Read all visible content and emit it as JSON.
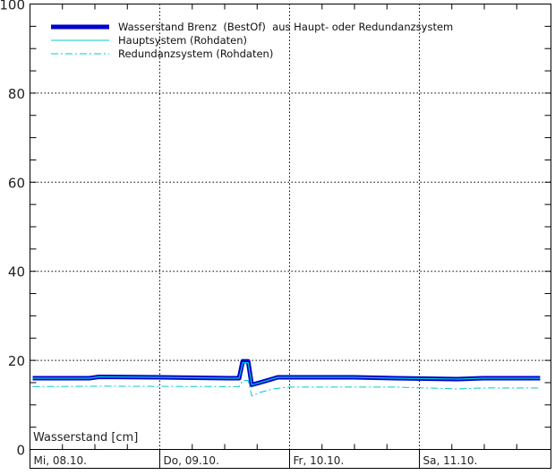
{
  "chart_data": {
    "type": "line",
    "title": "",
    "xlabel": "",
    "ylabel": "Wasserstand [cm]",
    "ylim": [
      0,
      100
    ],
    "yticks": [
      0,
      20,
      40,
      60,
      80,
      100
    ],
    "grid": true,
    "legend_position": "top-left",
    "x_day_labels": [
      "Mi, 08.10.",
      "Do, 09.10.",
      "Fr, 10.10.",
      "Sa, 11.10."
    ],
    "series": [
      {
        "name": "Wasserstand Brenz  (BestOf)  aus Haupt- oder Redundanzsystem",
        "color": "#0000cc",
        "style": "thick",
        "points": [
          [
            "08.10. 00:30",
            16.0
          ],
          [
            "08.10. 11:00",
            16.0
          ],
          [
            "08.10. 12:45",
            16.3
          ],
          [
            "09.10. 00:00",
            16.2
          ],
          [
            "09.10. 12:45",
            16.0
          ],
          [
            "09.10. 14:40",
            16.0
          ],
          [
            "09.10. 15:20",
            19.8
          ],
          [
            "09.10. 16:20",
            19.8
          ],
          [
            "09.10. 17:00",
            14.5
          ],
          [
            "09.10. 18:30",
            15.0
          ],
          [
            "09.10. 20:10",
            15.6
          ],
          [
            "09.10. 21:50",
            16.2
          ],
          [
            "10.10. 12:00",
            16.2
          ],
          [
            "10.10. 19:30",
            16.0
          ],
          [
            "11.10. 07:10",
            15.8
          ],
          [
            "11.10. 11:45",
            16.0
          ],
          [
            "11.10. 22:20",
            16.0
          ]
        ]
      },
      {
        "name": "Hauptsystem (Rohdaten)",
        "color": "#00cccc",
        "style": "solid",
        "points": [
          [
            "08.10. 00:30",
            16.0
          ],
          [
            "08.10. 11:00",
            16.0
          ],
          [
            "08.10. 12:45",
            16.3
          ],
          [
            "09.10. 00:00",
            16.2
          ],
          [
            "09.10. 12:45",
            16.0
          ],
          [
            "09.10. 14:40",
            16.0
          ],
          [
            "09.10. 15:20",
            19.5
          ],
          [
            "09.10. 16:20",
            19.5
          ],
          [
            "09.10. 17:00",
            14.5
          ],
          [
            "09.10. 18:30",
            15.0
          ],
          [
            "09.10. 20:10",
            15.6
          ],
          [
            "09.10. 21:50",
            16.2
          ],
          [
            "10.10. 12:00",
            16.2
          ],
          [
            "10.10. 19:30",
            16.0
          ],
          [
            "11.10. 07:10",
            15.8
          ],
          [
            "11.10. 11:45",
            16.0
          ],
          [
            "11.10. 22:20",
            16.0
          ]
        ]
      },
      {
        "name": "Redundanzsystem (Rohdaten)",
        "color": "#00cccc",
        "style": "dashdot",
        "points": [
          [
            "08.10. 00:30",
            14.1
          ],
          [
            "08.10. 14:00",
            14.2
          ],
          [
            "09.10. 14:40",
            14.1
          ],
          [
            "09.10. 15:20",
            15.5
          ],
          [
            "09.10. 16:20",
            15.5
          ],
          [
            "09.10. 17:00",
            12.0
          ],
          [
            "09.10. 18:30",
            12.8
          ],
          [
            "09.10. 21:00",
            13.6
          ],
          [
            "10.10. 00:00",
            14.0
          ],
          [
            "10.10. 19:30",
            14.0
          ],
          [
            "11.10. 07:00",
            13.6
          ],
          [
            "11.10. 12:00",
            13.8
          ],
          [
            "11.10. 22:20",
            13.8
          ]
        ]
      }
    ]
  }
}
